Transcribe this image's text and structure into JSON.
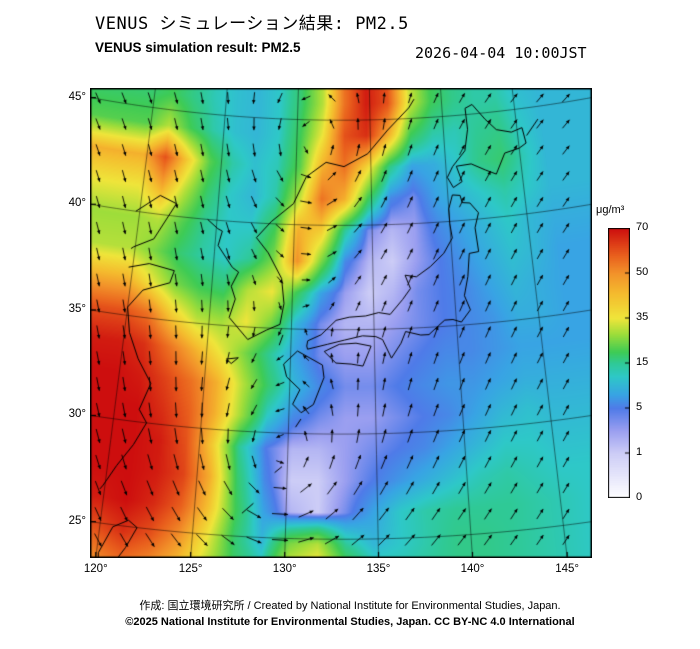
{
  "header": {
    "title_ja": "VENUS シミュレーション結果: PM2.5",
    "title_en": "VENUS simulation result: PM2.5",
    "timestamp": "2026-04-04 10:00JST"
  },
  "axes": {
    "lat_ticks": [
      {
        "value": 25,
        "label": "25°"
      },
      {
        "value": 30,
        "label": "30°"
      },
      {
        "value": 35,
        "label": "35°"
      },
      {
        "value": 40,
        "label": "40°"
      },
      {
        "value": 45,
        "label": "45°"
      }
    ],
    "lon_ticks": [
      {
        "value": 120,
        "label": "120°"
      },
      {
        "value": 125,
        "label": "125°"
      },
      {
        "value": 130,
        "label": "130°"
      },
      {
        "value": 135,
        "label": "135°"
      },
      {
        "value": 140,
        "label": "140°"
      },
      {
        "value": 145,
        "label": "145°"
      }
    ]
  },
  "colorbar": {
    "units": "μg/m³",
    "tick_values": [
      70,
      50,
      35,
      15,
      5,
      1,
      0
    ],
    "tick_labels": [
      "70",
      "50",
      "35",
      "15",
      "5",
      "1",
      "0"
    ]
  },
  "footer": {
    "credit": "作成:  国立環境研究所 / Created by National Institute for Environmental Studies, Japan.",
    "license": "©2025 National Institute for Environmental Studies, Japan. CC BY-NC 4.0 International"
  },
  "chart_data": {
    "type": "heatmap",
    "variable": "PM2.5",
    "units": "μg/m³",
    "title": "VENUS シミュレーション結果: PM2.5",
    "subtitle": "VENUS simulation result: PM2.5",
    "timestamp": "2026-04-04 10:00JST",
    "projection": "lambert-conformal-conic",
    "lon_axis_ticks": [
      120,
      125,
      130,
      135,
      140,
      145
    ],
    "lat_axis_ticks": [
      25,
      30,
      35,
      40,
      45
    ],
    "lon_start": 119.75,
    "lon_step": 1.5,
    "lat_start_north": 45.75,
    "lat_step": 1.5,
    "color_scale": {
      "breakpoint_values": [
        0,
        1,
        5,
        15,
        35,
        50,
        70
      ],
      "stops": [
        {
          "v": 0,
          "c": "#ffffff"
        },
        {
          "v": 1,
          "c": "#cdcdf6"
        },
        {
          "v": 3,
          "c": "#9b9ff0"
        },
        {
          "v": 5,
          "c": "#4f7be8"
        },
        {
          "v": 8,
          "c": "#38a4e4"
        },
        {
          "v": 12,
          "c": "#2ec8c8"
        },
        {
          "v": 15,
          "c": "#2fc996"
        },
        {
          "v": 20,
          "c": "#3ecb55"
        },
        {
          "v": 28,
          "c": "#9edd3a"
        },
        {
          "v": 35,
          "c": "#efe53a"
        },
        {
          "v": 43,
          "c": "#f4bc2e"
        },
        {
          "v": 50,
          "c": "#f2922a"
        },
        {
          "v": 58,
          "c": "#e95f1d"
        },
        {
          "v": 70,
          "c": "#cd0e0e"
        }
      ]
    },
    "grid_values_north_to_south": [
      [
        18,
        20,
        16,
        13,
        11,
        10,
        12,
        18,
        30,
        55,
        68,
        60,
        32,
        20,
        16,
        14,
        14,
        11,
        10
      ],
      [
        22,
        30,
        20,
        14,
        11,
        10,
        12,
        20,
        35,
        60,
        65,
        45,
        20,
        14,
        13,
        15,
        16,
        12,
        10
      ],
      [
        45,
        60,
        40,
        22,
        14,
        11,
        13,
        22,
        45,
        55,
        38,
        16,
        8,
        9,
        12,
        16,
        18,
        13,
        10
      ],
      [
        35,
        45,
        30,
        18,
        12,
        10,
        14,
        30,
        55,
        45,
        20,
        6,
        4,
        8,
        10,
        12,
        14,
        12,
        10
      ],
      [
        28,
        30,
        22,
        15,
        12,
        12,
        20,
        45,
        40,
        15,
        4,
        2,
        3,
        6,
        8,
        10,
        12,
        10,
        9
      ],
      [
        30,
        25,
        18,
        14,
        12,
        15,
        25,
        50,
        25,
        6,
        2,
        1,
        3,
        5,
        7,
        9,
        11,
        10,
        8
      ],
      [
        45,
        35,
        25,
        20,
        18,
        30,
        35,
        20,
        8,
        3,
        1,
        2,
        4,
        5,
        6,
        8,
        10,
        9,
        8
      ],
      [
        60,
        55,
        40,
        30,
        28,
        35,
        25,
        10,
        4,
        2,
        2,
        3,
        4,
        5,
        6,
        7,
        9,
        9,
        8
      ],
      [
        68,
        65,
        55,
        45,
        35,
        25,
        15,
        8,
        4,
        3,
        3,
        4,
        5,
        6,
        6,
        7,
        8,
        8,
        8
      ],
      [
        70,
        68,
        62,
        55,
        45,
        30,
        18,
        10,
        6,
        4,
        4,
        5,
        6,
        7,
        7,
        8,
        9,
        9,
        9
      ],
      [
        70,
        70,
        65,
        58,
        45,
        28,
        12,
        6,
        4,
        3,
        3,
        4,
        5,
        6,
        8,
        10,
        11,
        10,
        10
      ],
      [
        70,
        70,
        68,
        60,
        40,
        15,
        5,
        2,
        2,
        3,
        4,
        5,
        6,
        8,
        10,
        12,
        12,
        11,
        11
      ],
      [
        70,
        70,
        68,
        62,
        45,
        18,
        6,
        1,
        1,
        3,
        5,
        7,
        9,
        11,
        13,
        14,
        13,
        12,
        12
      ],
      [
        68,
        70,
        66,
        58,
        42,
        20,
        8,
        2,
        1,
        4,
        8,
        12,
        14,
        15,
        15,
        15,
        14,
        13,
        12
      ],
      [
        60,
        65,
        60,
        50,
        35,
        18,
        10,
        25,
        30,
        15,
        10,
        12,
        14,
        16,
        16,
        15,
        14,
        13,
        12
      ],
      [
        50,
        55,
        50,
        42,
        30,
        20,
        15,
        35,
        40,
        25,
        15,
        14,
        15,
        16,
        16,
        15,
        14,
        13,
        12
      ]
    ],
    "wind": {
      "arrow_color": "#000000",
      "grid_spacing_px": 26,
      "background_flow": {
        "u_base": 0.3,
        "u_per_lat": 1.2,
        "v": -0.18
      },
      "vortices": [
        {
          "lon": 129.5,
          "lat": 28.0,
          "core_radius_deg": 4.0,
          "strength": 2.2,
          "sense": "cyclonic"
        },
        {
          "lon": 131.0,
          "lat": 43.5,
          "core_radius_deg": 3.0,
          "strength": 1.4,
          "sense": "cyclonic"
        }
      ]
    },
    "coastlines": [
      [
        [
          119.75,
          40.0
        ],
        [
          121.2,
          40.9
        ],
        [
          122.3,
          40.6
        ],
        [
          121.1,
          38.8
        ],
        [
          119.9,
          38.3
        ],
        [
          119.75,
          38.2
        ]
      ],
      [
        [
          119.75,
          37.3
        ],
        [
          121.0,
          37.6
        ],
        [
          122.6,
          37.4
        ],
        [
          122.4,
          36.8
        ],
        [
          120.8,
          36.3
        ],
        [
          120.0,
          35.4
        ],
        [
          120.3,
          34.2
        ],
        [
          121.0,
          33.0
        ],
        [
          121.9,
          31.9
        ],
        [
          121.4,
          30.6
        ],
        [
          121.9,
          30.0
        ],
        [
          121.3,
          28.9
        ],
        [
          120.5,
          27.8
        ],
        [
          119.9,
          26.8
        ],
        [
          119.75,
          26.6
        ]
      ],
      [
        [
          124.4,
          40.0
        ],
        [
          125.1,
          39.6
        ],
        [
          125.4,
          39.5
        ],
        [
          125.2,
          38.8
        ],
        [
          126.2,
          37.8
        ],
        [
          126.6,
          37.6
        ],
        [
          126.2,
          36.9
        ],
        [
          126.5,
          36.3
        ],
        [
          126.2,
          35.4
        ],
        [
          127.4,
          34.4
        ],
        [
          128.5,
          34.9
        ],
        [
          129.3,
          35.2
        ],
        [
          129.5,
          36.2
        ],
        [
          129.3,
          37.4
        ],
        [
          128.4,
          38.6
        ],
        [
          127.6,
          39.3
        ],
        [
          128.5,
          40.1
        ],
        [
          129.9,
          41.0
        ],
        [
          130.7,
          42.3
        ],
        [
          132.0,
          43.0
        ],
        [
          133.2,
          42.8
        ],
        [
          134.8,
          43.4
        ],
        [
          136.2,
          44.5
        ],
        [
          137.7,
          45.5
        ],
        [
          138.1,
          45.9
        ]
      ],
      [
        [
          130.4,
          33.95
        ],
        [
          131.1,
          33.65
        ],
        [
          131.9,
          33.3
        ],
        [
          132.0,
          32.7
        ],
        [
          131.4,
          31.4
        ],
        [
          130.7,
          31.0
        ],
        [
          130.2,
          31.4
        ],
        [
          130.6,
          32.1
        ],
        [
          129.8,
          32.7
        ],
        [
          129.6,
          33.3
        ],
        [
          130.4,
          33.95
        ]
      ],
      [
        [
          132.0,
          33.95
        ],
        [
          132.7,
          33.4
        ],
        [
          133.6,
          33.35
        ],
        [
          134.3,
          33.25
        ],
        [
          134.8,
          34.2
        ],
        [
          133.9,
          34.35
        ],
        [
          132.9,
          34.3
        ],
        [
          132.0,
          33.95
        ]
      ],
      [
        [
          131.0,
          34.05
        ],
        [
          132.2,
          34.3
        ],
        [
          133.2,
          34.5
        ],
        [
          134.3,
          34.7
        ],
        [
          135.1,
          34.65
        ],
        [
          135.5,
          34.5
        ],
        [
          136.0,
          33.6
        ],
        [
          136.6,
          34.3
        ],
        [
          136.9,
          34.85
        ],
        [
          137.8,
          34.65
        ],
        [
          138.3,
          34.65
        ],
        [
          138.9,
          35.05
        ],
        [
          139.3,
          35.3
        ],
        [
          139.8,
          35.3
        ],
        [
          140.3,
          35.15
        ],
        [
          140.9,
          35.7
        ],
        [
          140.6,
          36.4
        ],
        [
          140.9,
          37.3
        ],
        [
          141.1,
          38.4
        ],
        [
          141.7,
          38.45
        ],
        [
          141.6,
          39.6
        ],
        [
          141.9,
          40.3
        ],
        [
          141.4,
          40.8
        ],
        [
          140.9,
          40.85
        ],
        [
          140.8,
          41.2
        ],
        [
          140.3,
          41.25
        ],
        [
          140.0,
          40.6
        ],
        [
          140.0,
          39.9
        ],
        [
          140.1,
          39.2
        ],
        [
          139.5,
          38.5
        ],
        [
          138.6,
          37.9
        ],
        [
          137.7,
          37.45
        ],
        [
          137.0,
          37.55
        ],
        [
          137.3,
          36.9
        ],
        [
          136.8,
          36.4
        ],
        [
          136.0,
          35.7
        ],
        [
          135.3,
          35.8
        ],
        [
          134.5,
          35.65
        ],
        [
          133.5,
          35.6
        ],
        [
          132.7,
          35.45
        ],
        [
          131.8,
          34.75
        ],
        [
          131.0,
          34.45
        ],
        [
          130.95,
          34.2
        ],
        [
          131.0,
          34.05
        ]
      ],
      [
        [
          140.4,
          41.6
        ],
        [
          141.0,
          41.85
        ],
        [
          140.7,
          42.6
        ],
        [
          141.7,
          42.65
        ],
        [
          142.6,
          42.3
        ],
        [
          143.3,
          42.05
        ],
        [
          144.0,
          43.0
        ],
        [
          145.0,
          43.15
        ],
        [
          145.5,
          43.35
        ],
        [
          145.35,
          44.1
        ],
        [
          144.6,
          43.95
        ],
        [
          143.6,
          44.15
        ],
        [
          142.9,
          44.7
        ],
        [
          142.1,
          45.45
        ],
        [
          141.6,
          45.3
        ],
        [
          141.65,
          44.3
        ],
        [
          141.35,
          43.3
        ],
        [
          140.45,
          42.6
        ],
        [
          140.05,
          42.1
        ],
        [
          140.4,
          41.6
        ]
      ],
      [
        [
          120.1,
          23.6
        ],
        [
          120.7,
          24.9
        ],
        [
          121.5,
          25.3
        ],
        [
          122.0,
          25.0
        ],
        [
          121.5,
          24.0
        ],
        [
          121.0,
          23.25
        ],
        [
          120.15,
          23.25
        ],
        [
          120.1,
          23.6
        ]
      ],
      [
        [
          126.2,
          33.4
        ],
        [
          126.9,
          33.5
        ],
        [
          126.5,
          33.2
        ],
        [
          126.2,
          33.4
        ]
      ],
      [
        [
          129.3,
          34.2
        ],
        [
          129.5,
          34.7
        ]
      ],
      [
        [
          127.6,
          26.1
        ],
        [
          128.2,
          26.6
        ]
      ],
      [
        [
          129.3,
          28.1
        ],
        [
          129.7,
          28.4
        ]
      ],
      [
        [
          130.4,
          30.3
        ],
        [
          130.7,
          30.7
        ]
      ],
      [
        [
          145.6,
          43.7
        ],
        [
          146.5,
          44.4
        ]
      ]
    ]
  }
}
